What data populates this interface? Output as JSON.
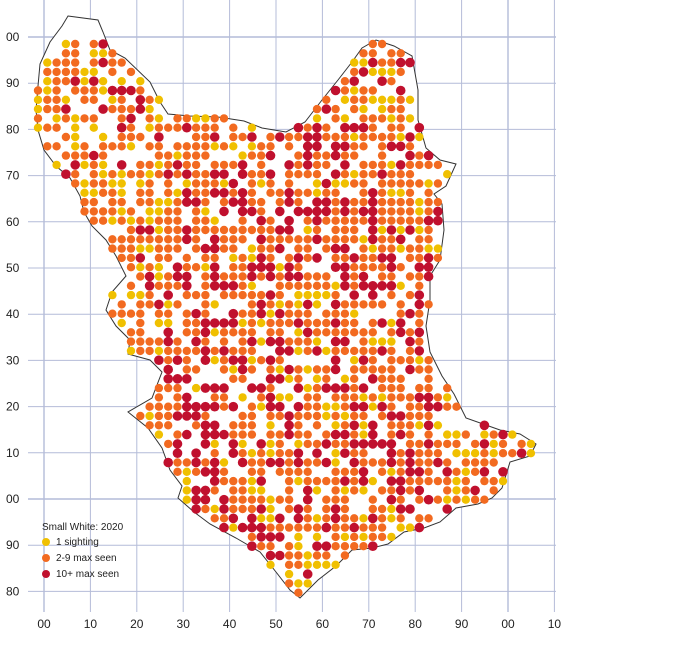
{
  "map": {
    "grid_x_labels": [
      "00",
      "10",
      "20",
      "30",
      "40",
      "50",
      "60",
      "70",
      "80",
      "90",
      "00",
      "10"
    ],
    "grid_y_labels": [
      "00",
      "90",
      "80",
      "70",
      "60",
      "50",
      "40",
      "30",
      "20",
      "10",
      "00",
      "90",
      "80"
    ],
    "legend": {
      "title": "Small White:  2020",
      "items": [
        {
          "label": "1 sighting",
          "color": "#f0c000"
        },
        {
          "label": "2-9 max seen",
          "color": "#f26a20"
        },
        {
          "label": "10+ max seen",
          "color": "#c0102e"
        }
      ]
    },
    "colors": {
      "grid": "#b4bcd8",
      "boundary": "#333333",
      "one": "#f0c000",
      "few": "#f26a20",
      "many": "#c0102e"
    }
  }
}
